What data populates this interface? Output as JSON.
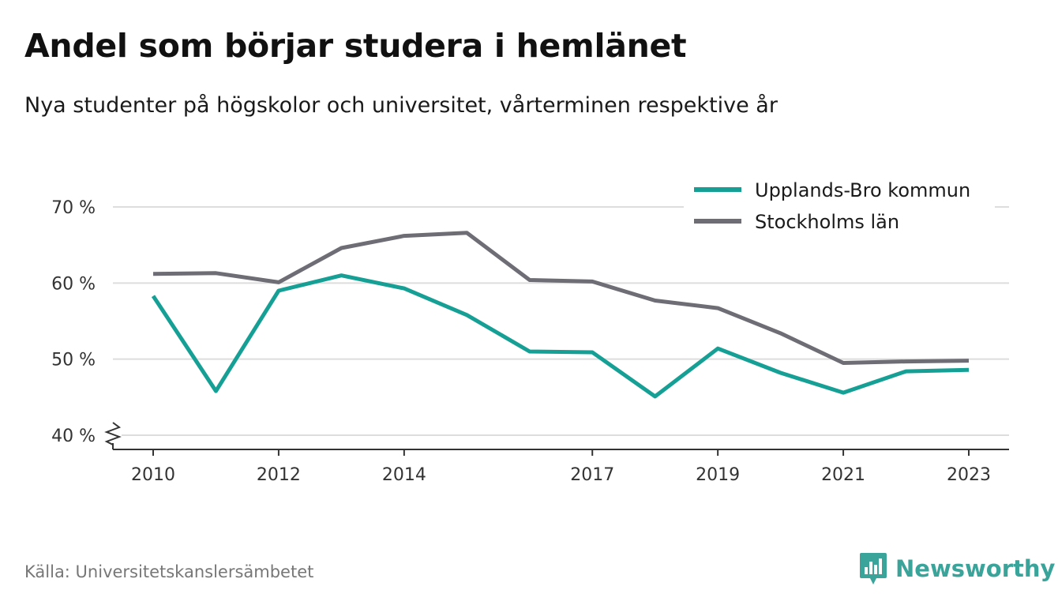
{
  "header": {
    "title": "Andel som börjar studera i hemlänet",
    "subtitle": "Nya studenter på högskolor och universitet, vårterminen respektive år"
  },
  "footer": {
    "source": "Källa: Universitetskanslersämbetet",
    "brand": "Newsworthy",
    "brand_icon": "bar-chart-badge-icon"
  },
  "chart_data": {
    "type": "line",
    "x": [
      2010,
      2011,
      2012,
      2013,
      2014,
      2015,
      2016,
      2017,
      2018,
      2019,
      2020,
      2021,
      2022,
      2023
    ],
    "x_ticks": [
      2010,
      2012,
      2014,
      2017,
      2019,
      2021,
      2023
    ],
    "ylim": [
      40,
      70
    ],
    "y_ticks": [
      40,
      50,
      60,
      70
    ],
    "y_tick_labels": [
      "40 %",
      "50 %",
      "60 %",
      "70 %"
    ],
    "y_axis_break": true,
    "grid": true,
    "legend_position": "top-right",
    "series": [
      {
        "name": "Upplands-Bro kommun",
        "color": "#16a095",
        "values": [
          58.3,
          45.8,
          59.0,
          61.0,
          59.3,
          55.8,
          51.0,
          50.9,
          45.1,
          51.4,
          48.2,
          45.6,
          48.4,
          48.6
        ]
      },
      {
        "name": "Stockholms län",
        "color": "#6e6c74",
        "values": [
          61.2,
          61.3,
          60.1,
          64.6,
          66.2,
          66.6,
          60.4,
          60.2,
          57.7,
          56.7,
          53.4,
          49.5,
          49.7,
          49.8
        ]
      }
    ]
  }
}
